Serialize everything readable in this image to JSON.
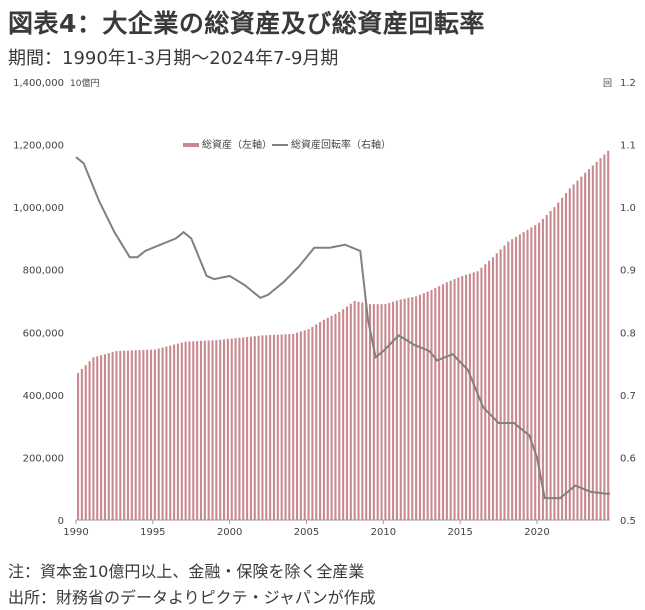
{
  "header": {
    "title": "図表4：大企業の総資産及び総資産回転率",
    "period": "期間：1990年1-3月期～2024年7-9月期"
  },
  "footer": {
    "note1": "注：資本金10億円以上、金融・保険を除く全産業",
    "note2": "出所：財務省のデータよりピクテ・ジャパンが作成"
  },
  "colors": {
    "bar": "#c98a8f",
    "line": "#808080",
    "text": "#333333"
  },
  "chart_data": {
    "type": "bar+line",
    "left_unit": "10億円",
    "right_unit": "回",
    "legend": [
      "総資産（左軸）",
      "総資産回転率（右軸）"
    ],
    "legend_position": "top-center",
    "ylim_left": [
      0,
      1400000
    ],
    "ylim_right": [
      0.5,
      1.2
    ],
    "left_ticks": [
      "1,400,000",
      "1,200,000",
      "1,000,000",
      "800,000",
      "600,000",
      "400,000",
      "200,000",
      "0"
    ],
    "right_ticks": [
      "1.2",
      "1.1",
      "1.0",
      "0.9",
      "0.8",
      "0.7",
      "0.6",
      "0.5"
    ],
    "x_ticks": [
      "1990",
      "1995",
      "2000",
      "2005",
      "2010",
      "2015",
      "2020"
    ],
    "grid": false,
    "assets_anchor_points": [
      [
        1990.0,
        470000
      ],
      [
        1991.0,
        520000
      ],
      [
        1992.5,
        540000
      ],
      [
        1995.0,
        545000
      ],
      [
        1997.0,
        570000
      ],
      [
        1999.0,
        575000
      ],
      [
        2000.0,
        580000
      ],
      [
        2002.0,
        590000
      ],
      [
        2004.0,
        595000
      ],
      [
        2005.0,
        610000
      ],
      [
        2006.0,
        640000
      ],
      [
        2007.0,
        665000
      ],
      [
        2008.0,
        700000
      ],
      [
        2009.0,
        690000
      ],
      [
        2010.0,
        690000
      ],
      [
        2011.0,
        705000
      ],
      [
        2012.0,
        715000
      ],
      [
        2013.0,
        735000
      ],
      [
        2014.0,
        760000
      ],
      [
        2015.0,
        780000
      ],
      [
        2016.0,
        795000
      ],
      [
        2017.0,
        840000
      ],
      [
        2018.0,
        890000
      ],
      [
        2019.0,
        920000
      ],
      [
        2020.0,
        950000
      ],
      [
        2021.0,
        1000000
      ],
      [
        2022.0,
        1060000
      ],
      [
        2023.0,
        1110000
      ],
      [
        2024.5,
        1180000
      ]
    ],
    "turnover_anchor_points": [
      [
        1990.0,
        1.08
      ],
      [
        1990.5,
        1.07
      ],
      [
        1991.5,
        1.01
      ],
      [
        1992.5,
        0.96
      ],
      [
        1993.5,
        0.92
      ],
      [
        1994.0,
        0.92
      ],
      [
        1994.5,
        0.93
      ],
      [
        1995.5,
        0.94
      ],
      [
        1996.5,
        0.95
      ],
      [
        1997.0,
        0.96
      ],
      [
        1997.5,
        0.95
      ],
      [
        1998.5,
        0.89
      ],
      [
        1999.0,
        0.885
      ],
      [
        2000.0,
        0.89
      ],
      [
        2001.0,
        0.875
      ],
      [
        2002.0,
        0.855
      ],
      [
        2002.5,
        0.86
      ],
      [
        2003.5,
        0.88
      ],
      [
        2004.5,
        0.905
      ],
      [
        2005.5,
        0.935
      ],
      [
        2006.5,
        0.935
      ],
      [
        2007.5,
        0.94
      ],
      [
        2008.5,
        0.93
      ],
      [
        2009.0,
        0.82
      ],
      [
        2009.5,
        0.76
      ],
      [
        2010.0,
        0.77
      ],
      [
        2011.0,
        0.795
      ],
      [
        2012.0,
        0.78
      ],
      [
        2013.0,
        0.77
      ],
      [
        2013.5,
        0.755
      ],
      [
        2014.5,
        0.765
      ],
      [
        2015.5,
        0.74
      ],
      [
        2016.5,
        0.68
      ],
      [
        2017.5,
        0.655
      ],
      [
        2018.5,
        0.655
      ],
      [
        2019.5,
        0.635
      ],
      [
        2020.0,
        0.6
      ],
      [
        2020.5,
        0.535
      ],
      [
        2021.5,
        0.535
      ],
      [
        2022.5,
        0.555
      ],
      [
        2023.5,
        0.545
      ],
      [
        2024.5,
        0.542
      ]
    ]
  }
}
